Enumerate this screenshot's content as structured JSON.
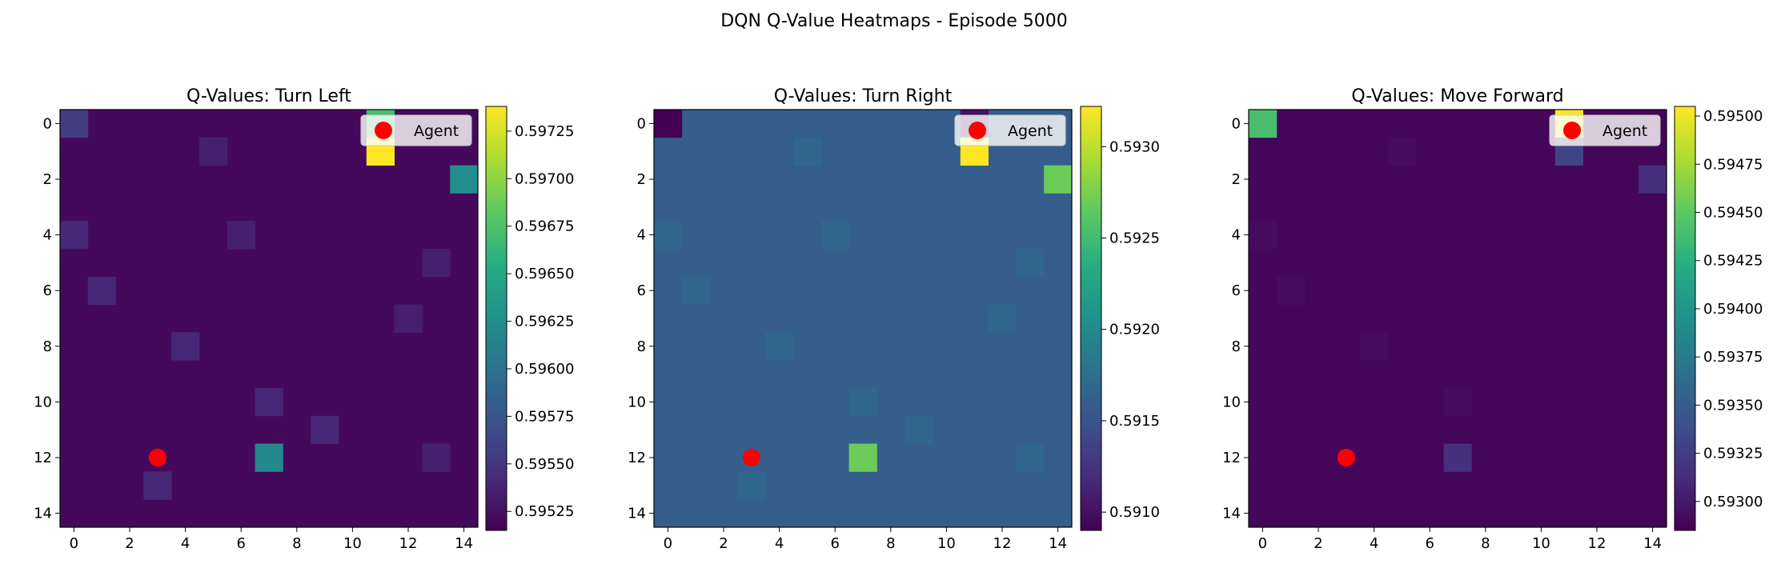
{
  "figure": {
    "title": "DQN Q-Value Heatmaps - Episode 5000"
  },
  "chart_data": [
    {
      "type": "heatmap",
      "title": "Q-Values: Turn Left",
      "grid_size": 15,
      "x_ticks": [
        "0",
        "2",
        "4",
        "6",
        "8",
        "10",
        "12",
        "14"
      ],
      "y_ticks": [
        "0",
        "2",
        "4",
        "6",
        "8",
        "10",
        "12",
        "14"
      ],
      "vmin": 0.59515,
      "vmax": 0.59738,
      "colorbar_ticks": [
        "0.59525",
        "0.59550",
        "0.59575",
        "0.59600",
        "0.59625",
        "0.59650",
        "0.59675",
        "0.59700",
        "0.59725"
      ],
      "base": 0.5952,
      "cells": [
        {
          "row": 0,
          "col": 0,
          "value": 0.59555
        },
        {
          "row": 1,
          "col": 5,
          "value": 0.59535
        },
        {
          "row": 0,
          "col": 11,
          "value": 0.5967
        },
        {
          "row": 1,
          "col": 11,
          "value": 0.59738
        },
        {
          "row": 2,
          "col": 14,
          "value": 0.59625
        },
        {
          "row": 4,
          "col": 0,
          "value": 0.5954
        },
        {
          "row": 4,
          "col": 6,
          "value": 0.59535
        },
        {
          "row": 5,
          "col": 13,
          "value": 0.59535
        },
        {
          "row": 6,
          "col": 1,
          "value": 0.5954
        },
        {
          "row": 7,
          "col": 12,
          "value": 0.59535
        },
        {
          "row": 8,
          "col": 4,
          "value": 0.5954
        },
        {
          "row": 10,
          "col": 7,
          "value": 0.5954
        },
        {
          "row": 11,
          "col": 9,
          "value": 0.5954
        },
        {
          "row": 12,
          "col": 7,
          "value": 0.5962
        },
        {
          "row": 12,
          "col": 13,
          "value": 0.59535
        },
        {
          "row": 13,
          "col": 3,
          "value": 0.5954
        }
      ],
      "agent": {
        "x": 3,
        "y": 12
      },
      "legend": {
        "label": "Agent",
        "position": "upper right"
      }
    },
    {
      "type": "heatmap",
      "title": "Q-Values: Turn Right",
      "grid_size": 15,
      "x_ticks": [
        "0",
        "2",
        "4",
        "6",
        "8",
        "10",
        "12",
        "14"
      ],
      "y_ticks": [
        "0",
        "2",
        "4",
        "6",
        "8",
        "10",
        "12",
        "14"
      ],
      "vmin": 0.5909,
      "vmax": 0.59322,
      "colorbar_ticks": [
        "0.5910",
        "0.5915",
        "0.5920",
        "0.5925",
        "0.5930"
      ],
      "base": 0.5916,
      "cells": [
        {
          "row": 0,
          "col": 0,
          "value": 0.5909
        },
        {
          "row": 0,
          "col": 11,
          "value": 0.591
        },
        {
          "row": 1,
          "col": 11,
          "value": 0.59322
        },
        {
          "row": 2,
          "col": 14,
          "value": 0.5927
        },
        {
          "row": 1,
          "col": 5,
          "value": 0.59168
        },
        {
          "row": 4,
          "col": 0,
          "value": 0.59168
        },
        {
          "row": 4,
          "col": 6,
          "value": 0.59168
        },
        {
          "row": 5,
          "col": 13,
          "value": 0.59168
        },
        {
          "row": 6,
          "col": 1,
          "value": 0.59168
        },
        {
          "row": 7,
          "col": 12,
          "value": 0.59168
        },
        {
          "row": 8,
          "col": 4,
          "value": 0.59168
        },
        {
          "row": 10,
          "col": 7,
          "value": 0.59168
        },
        {
          "row": 11,
          "col": 9,
          "value": 0.59168
        },
        {
          "row": 12,
          "col": 7,
          "value": 0.5927
        },
        {
          "row": 12,
          "col": 13,
          "value": 0.59168
        },
        {
          "row": 13,
          "col": 3,
          "value": 0.59168
        }
      ],
      "agent": {
        "x": 3,
        "y": 12
      },
      "legend": {
        "label": "Agent",
        "position": "upper right"
      }
    },
    {
      "type": "heatmap",
      "title": "Q-Values: Move Forward",
      "grid_size": 15,
      "x_ticks": [
        "0",
        "2",
        "4",
        "6",
        "8",
        "10",
        "12",
        "14"
      ],
      "y_ticks": [
        "0",
        "2",
        "4",
        "6",
        "8",
        "10",
        "12",
        "14"
      ],
      "vmin": 0.59285,
      "vmax": 0.59505,
      "colorbar_ticks": [
        "0.59300",
        "0.59325",
        "0.59350",
        "0.59375",
        "0.59400",
        "0.59425",
        "0.59450",
        "0.59475",
        "0.59500"
      ],
      "base": 0.59288,
      "cells": [
        {
          "row": 0,
          "col": 0,
          "value": 0.5944
        },
        {
          "row": 0,
          "col": 11,
          "value": 0.59505
        },
        {
          "row": 1,
          "col": 11,
          "value": 0.5933
        },
        {
          "row": 2,
          "col": 14,
          "value": 0.59315
        },
        {
          "row": 12,
          "col": 7,
          "value": 0.59315
        },
        {
          "row": 1,
          "col": 5,
          "value": 0.59292
        },
        {
          "row": 4,
          "col": 0,
          "value": 0.59292
        },
        {
          "row": 6,
          "col": 1,
          "value": 0.59292
        },
        {
          "row": 8,
          "col": 4,
          "value": 0.59292
        },
        {
          "row": 10,
          "col": 7,
          "value": 0.59292
        }
      ],
      "agent": {
        "x": 3,
        "y": 12
      },
      "legend": {
        "label": "Agent",
        "position": "upper right"
      }
    }
  ]
}
